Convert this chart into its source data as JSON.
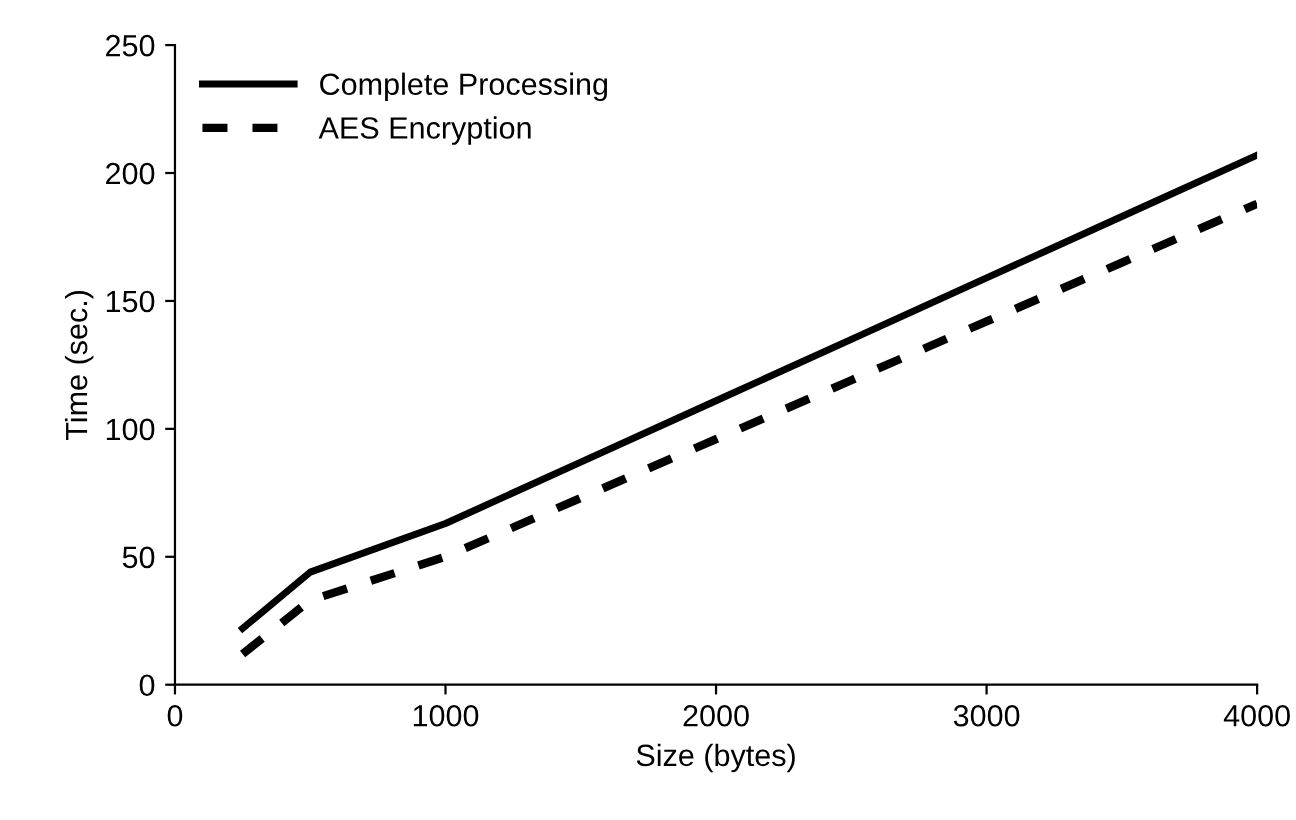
{
  "chart_data": {
    "type": "line",
    "xlabel": "Size (bytes)",
    "ylabel": "Time (sec.)",
    "xlim": [
      0,
      4000
    ],
    "xticks": [
      0,
      1000,
      2000,
      3000,
      4000
    ],
    "ylim": [
      0,
      250
    ],
    "yticks": [
      0,
      50,
      100,
      150,
      200,
      250
    ],
    "grid": false,
    "legend": "top left",
    "marker": "none",
    "series": [
      {
        "name": "Complete Processing",
        "color": "#000000",
        "line_style": "solid",
        "x": [
          250,
          500,
          1000,
          1500,
          2000,
          2500,
          3000,
          3500,
          4000
        ],
        "values": [
          22,
          44,
          63,
          87,
          111,
          135,
          159,
          183,
          207
        ]
      },
      {
        "name": "AES Encryption",
        "color": "#000000",
        "line_style": "dashed",
        "x": [
          250,
          500,
          1000,
          1500,
          2000,
          2500,
          3000,
          3500,
          4000
        ],
        "values": [
          12,
          33,
          50,
          73,
          96,
          119,
          142,
          165,
          188
        ]
      }
    ]
  }
}
